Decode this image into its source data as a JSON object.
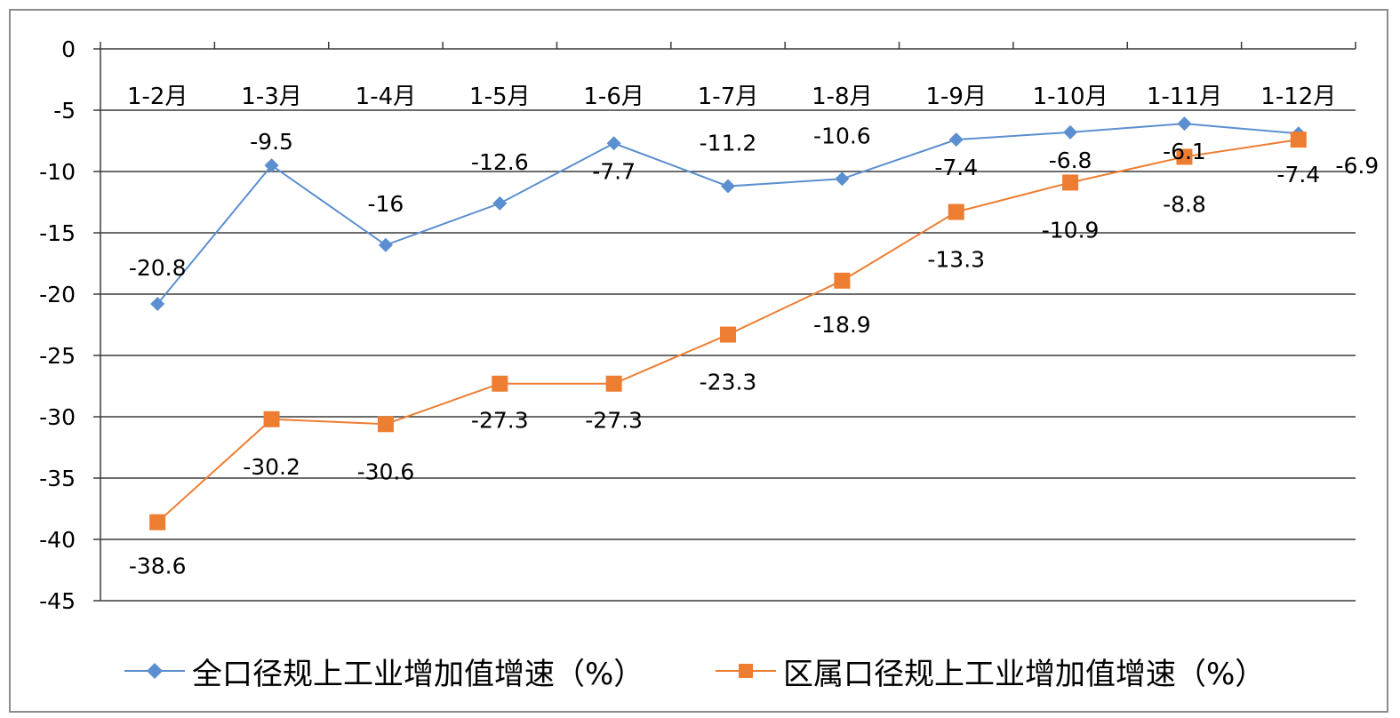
{
  "chart_data": {
    "type": "line",
    "categories": [
      "1-2月",
      "1-3月",
      "1-4月",
      "1-5月",
      "1-6月",
      "1-7月",
      "1-8月",
      "1-9月",
      "1-10月",
      "1-11月",
      "1-12月"
    ],
    "y_ticks": [
      "0",
      "-5",
      "-10",
      "-15",
      "-20",
      "-25",
      "-30",
      "-35",
      "-40",
      "-45"
    ],
    "ylim": [
      -45,
      0
    ],
    "grid": true,
    "legend_position": "bottom",
    "series": [
      {
        "name": "全口径规上工业增加值增速（%）",
        "color": "#5b8fcf",
        "marker": "diamond",
        "values": [
          -20.8,
          -9.5,
          -16,
          -12.6,
          -7.7,
          -11.2,
          -10.6,
          -7.4,
          -6.8,
          -6.1,
          -6.9
        ],
        "labels": [
          "-20.8",
          "-9.5",
          "-16",
          "-12.6",
          "-7.7",
          "-11.2",
          "-10.6",
          "-7.4",
          "-6.8",
          "-6.1",
          "-6.9"
        ]
      },
      {
        "name": "区属口径规上工业增加值增速（%）",
        "color": "#ed7d31",
        "marker": "square",
        "values": [
          -38.6,
          -30.2,
          -30.6,
          -27.3,
          -27.3,
          -23.3,
          -18.9,
          -13.3,
          -10.9,
          -8.8,
          -7.4
        ],
        "labels": [
          "-38.6",
          "-30.2",
          "-30.6",
          "-27.3",
          "-27.3",
          "-23.3",
          "-18.9",
          "-13.3",
          "-10.9",
          "-8.8",
          "-7.4"
        ]
      }
    ]
  }
}
